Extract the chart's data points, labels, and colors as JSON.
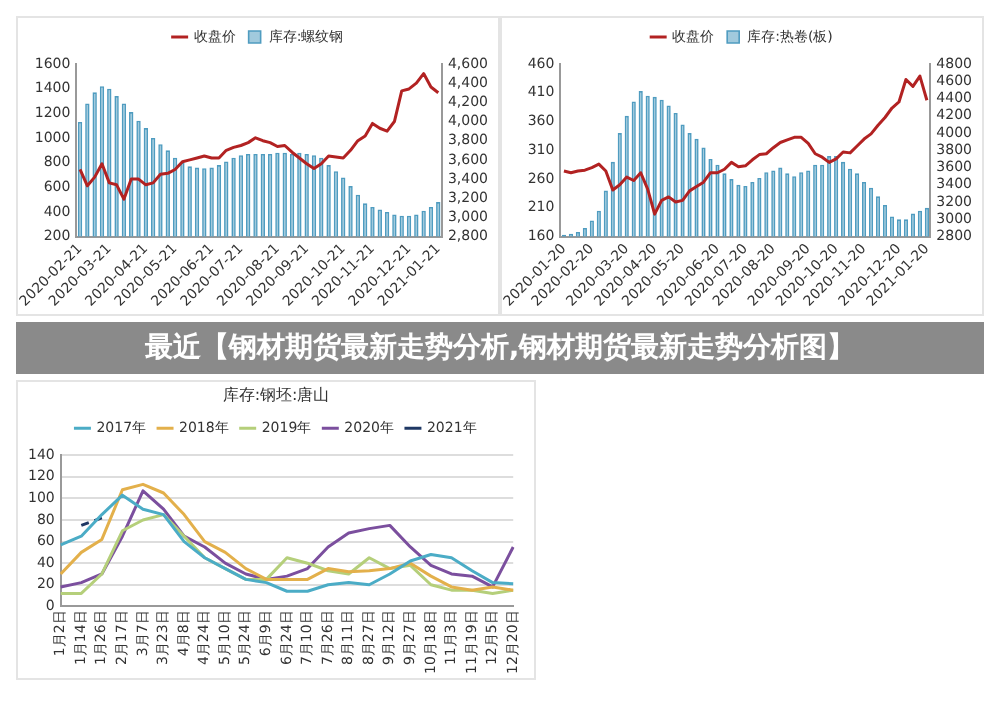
{
  "chart_data": [
    {
      "type": "bar",
      "categories": [
        "2020-02-21",
        null,
        null,
        null,
        "2020-03-21",
        null,
        null,
        null,
        null,
        "2020-04-21",
        null,
        null,
        null,
        "2020-05-21",
        null,
        null,
        null,
        null,
        "2020-06-21",
        null,
        null,
        null,
        "2020-07-21",
        null,
        null,
        null,
        null,
        "2020-08-21",
        null,
        null,
        null,
        "2020-09-21",
        null,
        null,
        null,
        null,
        "2020-10-21",
        null,
        null,
        null,
        "2020-11-21",
        null,
        null,
        null,
        null,
        "2020-12-21",
        null,
        null,
        null,
        "2021-01-21"
      ],
      "series": [
        {
          "name": "库存:螺纹钢",
          "type": "bar",
          "color": "#4f9cc0",
          "values": [
            1130,
            1280,
            1370,
            1420,
            1400,
            1340,
            1280,
            1210,
            1140,
            1080,
            1000,
            950,
            900,
            840,
            800,
            770,
            760,
            755,
            760,
            780,
            810,
            840,
            860,
            870,
            870,
            870,
            870,
            880,
            880,
            870,
            880,
            870,
            860,
            840,
            780,
            730,
            680,
            610,
            540,
            470,
            440,
            420,
            400,
            380,
            370,
            370,
            380,
            410,
            440,
            480
          ]
        },
        {
          "name": "收盘价",
          "type": "line",
          "axis": "y2",
          "color": "#b22222",
          "values": [
            3500,
            3330,
            3420,
            3560,
            3360,
            3340,
            3190,
            3400,
            3400,
            3340,
            3360,
            3450,
            3460,
            3500,
            3580,
            3600,
            3620,
            3640,
            3620,
            3620,
            3700,
            3730,
            3750,
            3780,
            3830,
            3800,
            3780,
            3740,
            3750,
            3680,
            3620,
            3560,
            3510,
            3560,
            3640,
            3630,
            3620,
            3700,
            3800,
            3850,
            3980,
            3930,
            3900,
            4000,
            4320,
            4340,
            4400,
            4500,
            4360,
            4300
          ]
        }
      ],
      "ylim": [
        200,
        1600
      ],
      "yticks": [
        200,
        400,
        600,
        800,
        1000,
        1200,
        1400,
        1600
      ],
      "y2lim": [
        2800,
        4600
      ],
      "y2ticks": [
        {
          "value": 2800,
          "label": "2,800"
        },
        {
          "value": 3000,
          "label": "3,000"
        },
        {
          "value": 3200,
          "label": "3,200"
        },
        {
          "value": 3400,
          "label": "3,400"
        },
        {
          "value": 3600,
          "label": "3,600"
        },
        {
          "value": 3800,
          "label": "3,800"
        },
        {
          "value": 4000,
          "label": "4,000"
        },
        {
          "value": 4200,
          "label": "4,200"
        },
        {
          "value": 4400,
          "label": "4,400"
        },
        {
          "value": 4600,
          "label": "4,600"
        }
      ],
      "legend": "top",
      "marker": "none",
      "grid": false
    },
    {
      "type": "bar",
      "categories": [
        "2020-01-20",
        null,
        null,
        null,
        "2020-02-20",
        null,
        null,
        null,
        null,
        "2020-03-20",
        null,
        null,
        null,
        "2020-04-20",
        null,
        null,
        null,
        "2020-05-20",
        null,
        null,
        null,
        null,
        "2020-06-20",
        null,
        null,
        null,
        "2020-07-20",
        null,
        null,
        null,
        "2020-08-20",
        null,
        null,
        null,
        null,
        "2020-09-20",
        null,
        null,
        null,
        "2020-10-20",
        null,
        null,
        null,
        "2020-11-20",
        null,
        null,
        null,
        null,
        "2020-12-20",
        null,
        null,
        null,
        "2021-01-20"
      ],
      "series": [
        {
          "name": "库存:热卷(板)",
          "type": "bar",
          "color": "#4f9cc0",
          "values": [
            163,
            165,
            168,
            175,
            188,
            205,
            240,
            290,
            340,
            370,
            395,
            413,
            405,
            403,
            398,
            388,
            375,
            355,
            340,
            330,
            315,
            295,
            285,
            270,
            260,
            250,
            248,
            255,
            262,
            272,
            275,
            280,
            270,
            265,
            272,
            275,
            285,
            285,
            300,
            300,
            290,
            278,
            270,
            255,
            245,
            230,
            215,
            195,
            190,
            190,
            200,
            205,
            210
          ]
        },
        {
          "name": "收盘价",
          "type": "line",
          "axis": "y2",
          "color": "#b22222",
          "values": [
            3560,
            3540,
            3560,
            3570,
            3600,
            3640,
            3560,
            3340,
            3400,
            3490,
            3450,
            3540,
            3350,
            3060,
            3220,
            3260,
            3200,
            3220,
            3330,
            3380,
            3430,
            3540,
            3540,
            3580,
            3660,
            3610,
            3620,
            3690,
            3750,
            3760,
            3830,
            3890,
            3920,
            3950,
            3950,
            3880,
            3760,
            3720,
            3660,
            3700,
            3780,
            3770,
            3850,
            3930,
            3990,
            4090,
            4180,
            4290,
            4360,
            4620,
            4540,
            4660,
            4380
          ]
        }
      ],
      "ylim": [
        160,
        460
      ],
      "yticks": [
        160,
        210,
        260,
        310,
        360,
        410,
        460
      ],
      "y2lim": [
        2800,
        4800
      ],
      "y2ticks": [
        2800,
        3000,
        3200,
        3400,
        3600,
        3800,
        4000,
        4200,
        4400,
        4600,
        4800
      ],
      "legend": "top",
      "marker": "none",
      "grid": false
    },
    {
      "type": "other",
      "title": "最近【钢材期货最新走势分析,钢材期货最新走势分析图】"
    },
    {
      "type": "line",
      "title": "库存:钢坯:唐山",
      "categories": [
        "1月2日",
        "1月14日",
        "1月26日",
        "2月17日",
        "3月7日",
        "3月23日",
        "4月8日",
        "4月24日",
        "5月10日",
        "5月24日",
        "6月9日",
        "6月24日",
        "7月10日",
        "7月26日",
        "8月11日",
        "8月27日",
        "9月12日",
        "9月27日",
        "10月18日",
        "11月3日",
        "11月19日",
        "12月5日",
        "12月20日"
      ],
      "series": [
        {
          "name": "2017年",
          "color": "#4bacc6",
          "values": [
            57,
            65,
            85,
            103,
            90,
            85,
            60,
            45,
            35,
            25,
            22,
            14,
            14,
            20,
            22,
            20,
            30,
            42,
            48,
            45,
            33,
            22,
            21
          ]
        },
        {
          "name": "2018年",
          "color": "#e3b04b",
          "values": [
            30,
            50,
            62,
            108,
            113,
            105,
            85,
            60,
            50,
            35,
            25,
            25,
            25,
            35,
            32,
            33,
            35,
            40,
            28,
            18,
            15,
            18,
            15
          ]
        },
        {
          "name": "2019年",
          "color": "#b5cf7a",
          "values": [
            12,
            12,
            30,
            70,
            80,
            85,
            65,
            45,
            35,
            25,
            25,
            45,
            40,
            33,
            30,
            45,
            35,
            38,
            20,
            15,
            15,
            12,
            15
          ]
        },
        {
          "name": "2020年",
          "color": "#7b4f9e",
          "values": [
            18,
            22,
            30,
            65,
            107,
            90,
            65,
            55,
            40,
            30,
            25,
            28,
            35,
            55,
            68,
            72,
            75,
            55,
            38,
            30,
            28,
            18,
            55
          ]
        },
        {
          "name": "2021年",
          "color": "#1f3864",
          "line_style": "dashed",
          "values": [
            null,
            75,
            82,
            null,
            null,
            null,
            null,
            null,
            null,
            null,
            null,
            null,
            null,
            null,
            null,
            null,
            null,
            null,
            null,
            null,
            null,
            null,
            null
          ]
        }
      ],
      "ylim": [
        0,
        140
      ],
      "yticks": [
        0,
        20,
        40,
        60,
        80,
        100,
        120,
        140
      ],
      "legend": "top",
      "marker": "none",
      "grid": "y"
    }
  ]
}
